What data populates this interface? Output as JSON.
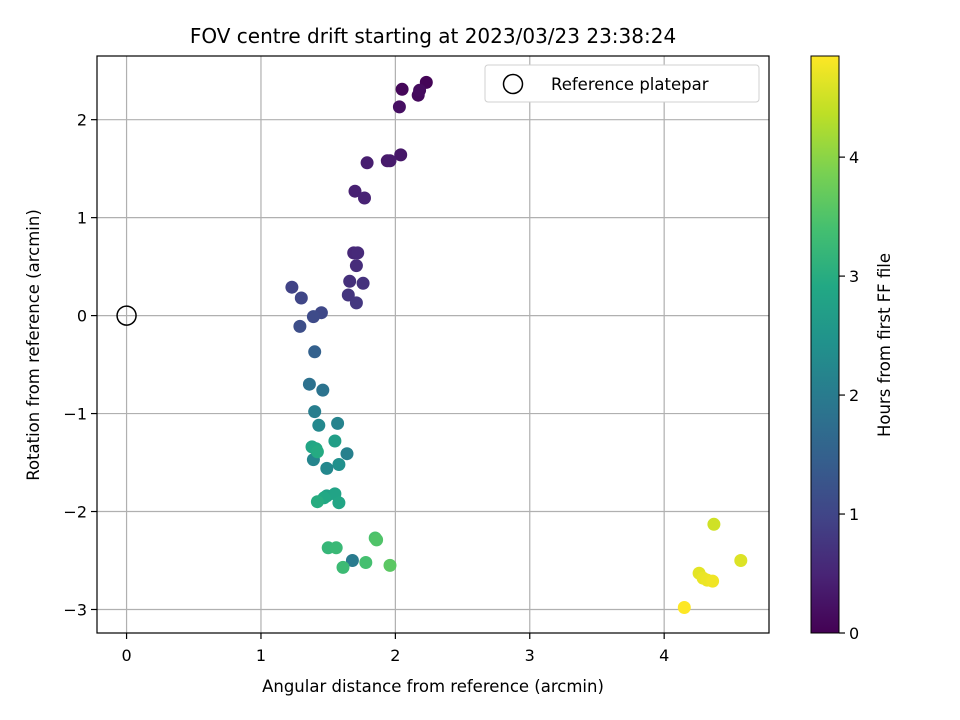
{
  "chart_data": {
    "type": "scatter",
    "title": "FOV centre drift starting at 2023/03/23 23:38:24",
    "xlabel": "Angular distance from reference (arcmin)",
    "ylabel": "Rotation from reference (arcmin)",
    "xlim": [
      -0.22,
      4.78
    ],
    "ylim": [
      -3.24,
      2.65
    ],
    "xticks": [
      0,
      1,
      2,
      3,
      4
    ],
    "yticks": [
      -3,
      -2,
      -1,
      0,
      1,
      2
    ],
    "xtick_labels": [
      "0",
      "1",
      "2",
      "3",
      "4"
    ],
    "ytick_labels": [
      "−3",
      "−2",
      "−1",
      "0",
      "1",
      "2"
    ],
    "grid": true,
    "legend": {
      "position": "top-right",
      "entries": [
        "Reference platepar"
      ]
    },
    "reference_point": {
      "label": "Reference platepar",
      "x": 0,
      "y": 0
    },
    "colorbar": {
      "label": "Hours from first FF file",
      "colormap": "viridis",
      "range": [
        0,
        4.85
      ],
      "ticks": [
        0,
        1,
        2,
        3,
        4
      ],
      "tick_labels": [
        "0",
        "1",
        "2",
        "3",
        "4"
      ]
    },
    "points": [
      {
        "x": 2.23,
        "y": 2.38,
        "c": 0.05
      },
      {
        "x": 2.05,
        "y": 2.31,
        "c": 0.08
      },
      {
        "x": 2.17,
        "y": 2.25,
        "c": 0.12
      },
      {
        "x": 2.18,
        "y": 2.3,
        "c": 0.15
      },
      {
        "x": 2.03,
        "y": 2.13,
        "c": 0.2
      },
      {
        "x": 2.04,
        "y": 1.64,
        "c": 0.3
      },
      {
        "x": 1.94,
        "y": 1.58,
        "c": 0.33
      },
      {
        "x": 1.96,
        "y": 1.58,
        "c": 0.36
      },
      {
        "x": 1.79,
        "y": 1.56,
        "c": 0.4
      },
      {
        "x": 1.7,
        "y": 1.27,
        "c": 0.44
      },
      {
        "x": 1.77,
        "y": 1.2,
        "c": 0.47
      },
      {
        "x": 1.69,
        "y": 0.64,
        "c": 0.55
      },
      {
        "x": 1.72,
        "y": 0.64,
        "c": 0.58
      },
      {
        "x": 1.71,
        "y": 0.51,
        "c": 0.62
      },
      {
        "x": 1.66,
        "y": 0.35,
        "c": 0.66
      },
      {
        "x": 1.76,
        "y": 0.33,
        "c": 0.7
      },
      {
        "x": 1.65,
        "y": 0.21,
        "c": 0.74
      },
      {
        "x": 1.71,
        "y": 0.13,
        "c": 0.78
      },
      {
        "x": 1.23,
        "y": 0.29,
        "c": 0.95
      },
      {
        "x": 1.3,
        "y": 0.18,
        "c": 1.0
      },
      {
        "x": 1.45,
        "y": 0.03,
        "c": 1.05
      },
      {
        "x": 1.39,
        "y": -0.01,
        "c": 1.1
      },
      {
        "x": 1.29,
        "y": -0.11,
        "c": 1.15
      },
      {
        "x": 1.4,
        "y": -0.37,
        "c": 1.5
      },
      {
        "x": 1.36,
        "y": -0.7,
        "c": 1.8
      },
      {
        "x": 1.46,
        "y": -0.76,
        "c": 1.85
      },
      {
        "x": 1.4,
        "y": -0.98,
        "c": 2.05
      },
      {
        "x": 1.57,
        "y": -1.1,
        "c": 2.15
      },
      {
        "x": 1.43,
        "y": -1.12,
        "c": 2.25
      },
      {
        "x": 1.64,
        "y": -1.41,
        "c": 2.1
      },
      {
        "x": 1.39,
        "y": -1.47,
        "c": 2.2
      },
      {
        "x": 1.49,
        "y": -1.56,
        "c": 2.25
      },
      {
        "x": 1.58,
        "y": -1.52,
        "c": 2.4
      },
      {
        "x": 1.55,
        "y": -1.28,
        "c": 2.7
      },
      {
        "x": 1.38,
        "y": -1.34,
        "c": 2.85
      },
      {
        "x": 1.41,
        "y": -1.36,
        "c": 2.9
      },
      {
        "x": 1.42,
        "y": -1.39,
        "c": 2.95
      },
      {
        "x": 1.49,
        "y": -1.84,
        "c": 2.75
      },
      {
        "x": 1.55,
        "y": -1.82,
        "c": 2.8
      },
      {
        "x": 1.47,
        "y": -1.86,
        "c": 2.9
      },
      {
        "x": 1.58,
        "y": -1.91,
        "c": 2.85
      },
      {
        "x": 1.42,
        "y": -1.9,
        "c": 3.0
      },
      {
        "x": 1.68,
        "y": -2.5,
        "c": 2.0
      },
      {
        "x": 1.5,
        "y": -2.37,
        "c": 3.2
      },
      {
        "x": 1.56,
        "y": -2.37,
        "c": 3.25
      },
      {
        "x": 1.61,
        "y": -2.57,
        "c": 3.3
      },
      {
        "x": 1.78,
        "y": -2.52,
        "c": 3.4
      },
      {
        "x": 1.85,
        "y": -2.27,
        "c": 3.45
      },
      {
        "x": 1.86,
        "y": -2.29,
        "c": 3.5
      },
      {
        "x": 1.96,
        "y": -2.55,
        "c": 3.6
      },
      {
        "x": 4.37,
        "y": -2.13,
        "c": 4.5
      },
      {
        "x": 4.57,
        "y": -2.5,
        "c": 4.6
      },
      {
        "x": 4.26,
        "y": -2.63,
        "c": 4.65
      },
      {
        "x": 4.29,
        "y": -2.68,
        "c": 4.7
      },
      {
        "x": 4.32,
        "y": -2.7,
        "c": 4.72
      },
      {
        "x": 4.36,
        "y": -2.71,
        "c": 4.75
      },
      {
        "x": 4.15,
        "y": -2.98,
        "c": 4.85
      }
    ]
  }
}
